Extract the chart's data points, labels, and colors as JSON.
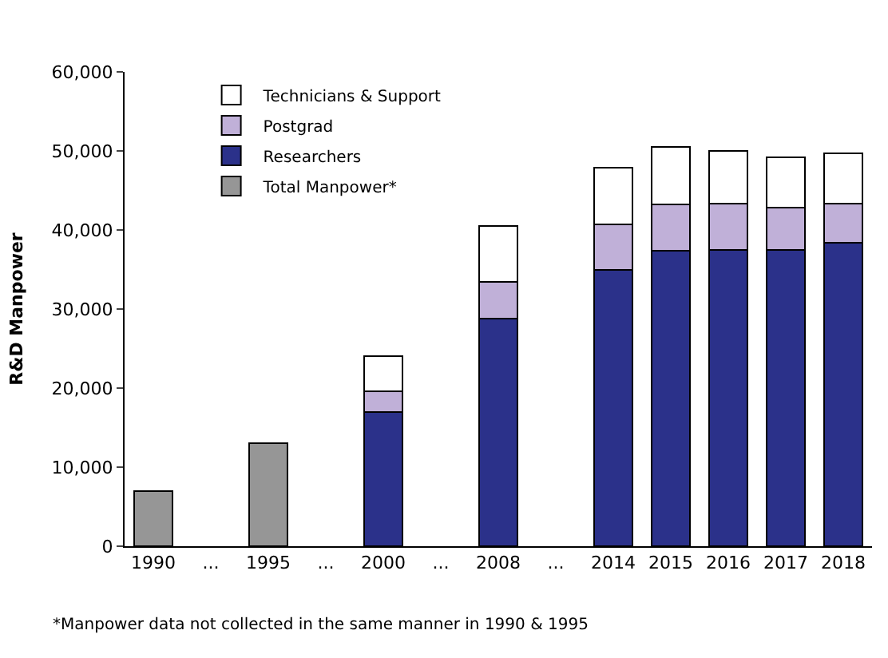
{
  "chart_data": {
    "type": "bar",
    "stacked": true,
    "ylabel": "R&D Manpower",
    "categories": [
      "1990",
      "...",
      "1995",
      "...",
      "2000",
      "...",
      "2008",
      "...",
      "2014",
      "2015",
      "2016",
      "2017",
      "2018"
    ],
    "series": [
      {
        "name": "Total Manpower*",
        "color": "#969696",
        "values": [
          7000,
          null,
          13000,
          null,
          null,
          null,
          null,
          null,
          null,
          null,
          null,
          null,
          null
        ]
      },
      {
        "name": "Researchers",
        "color": "#2b318a",
        "values": [
          null,
          null,
          null,
          null,
          17000,
          null,
          28800,
          null,
          34900,
          37400,
          37500,
          37500,
          38400
        ]
      },
      {
        "name": "Postgrad",
        "color": "#c0b0d8",
        "values": [
          null,
          null,
          null,
          null,
          2600,
          null,
          4600,
          null,
          5800,
          5800,
          5800,
          5300,
          4900
        ]
      },
      {
        "name": "Technicians & Support",
        "color": "#ffffff",
        "values": [
          null,
          null,
          null,
          null,
          4400,
          null,
          7100,
          null,
          7200,
          7300,
          6700,
          6400,
          6400
        ]
      }
    ],
    "ylim": [
      0,
      60000
    ],
    "yticks": [
      {
        "value": 0,
        "label": "0"
      },
      {
        "value": 10000,
        "label": "10,000"
      },
      {
        "value": 20000,
        "label": "20,000"
      },
      {
        "value": 30000,
        "label": "30,000"
      },
      {
        "value": 40000,
        "label": "40,000"
      },
      {
        "value": 50000,
        "label": "50,000"
      },
      {
        "value": 60000,
        "label": "60,000"
      }
    ],
    "grid": false,
    "legend": "top left",
    "annotations": [
      "*Manpower data not collected in the same manner in 1990 & 1995"
    ]
  }
}
